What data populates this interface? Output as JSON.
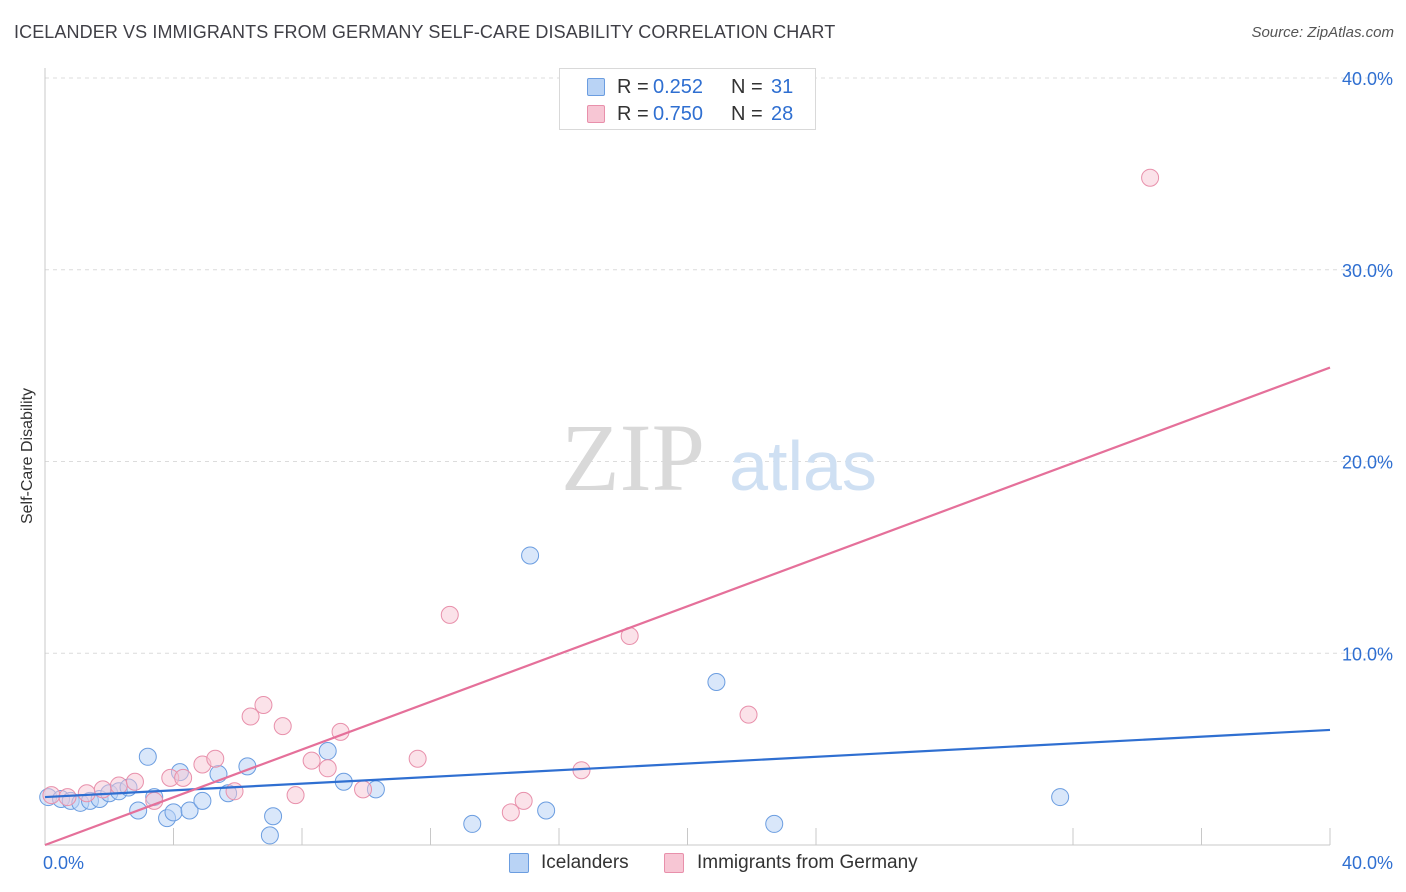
{
  "header": {
    "title": "ICELANDER VS IMMIGRANTS FROM GERMANY SELF-CARE DISABILITY CORRELATION CHART",
    "source": "Source: ZipAtlas.com"
  },
  "watermark": {
    "zip": "ZIP",
    "atlas": "atlas"
  },
  "stats": {
    "rows": [
      {
        "r_label": "R =",
        "r_value": "0.252",
        "n_label": "N =",
        "n_value": "31",
        "color": "#b9d3f5",
        "border": "#6b9de0"
      },
      {
        "r_label": "R =",
        "r_value": "0.750",
        "n_label": "N =",
        "n_value": "28",
        "color": "#f7c6d4",
        "border": "#e890ab"
      }
    ]
  },
  "legend": {
    "items": [
      {
        "label": "Icelanders",
        "color": "#b9d3f5",
        "border": "#6b9de0"
      },
      {
        "label": "Immigrants from Germany",
        "color": "#f7c6d4",
        "border": "#e890ab"
      }
    ]
  },
  "chart_data": {
    "type": "scatter",
    "title": "ICELANDER VS IMMIGRANTS FROM GERMANY SELF-CARE DISABILITY CORRELATION CHART",
    "xlabel": "",
    "ylabel": "Self-Care Disability",
    "xlim": [
      0,
      40
    ],
    "ylim": [
      0,
      40
    ],
    "x_tick_labels": [
      {
        "value": 0,
        "label": "0.0%"
      },
      {
        "value": 40,
        "label": "40.0%"
      }
    ],
    "y_tick_labels": [
      {
        "value": 10,
        "label": "10.0%"
      },
      {
        "value": 20,
        "label": "20.0%"
      },
      {
        "value": 30,
        "label": "30.0%"
      },
      {
        "value": 40,
        "label": "40.0%"
      }
    ],
    "x_minor_ticks": [
      4,
      8,
      12,
      16,
      20,
      24,
      32,
      36,
      40
    ],
    "grid": true,
    "colors": {
      "Icelanders": "#6b9de0",
      "Immigrants from Germany": "#e890ab",
      "blue_line": "#2f6fd1",
      "pink_line": "#e5709a",
      "tick_label": "#2f6fd1"
    },
    "series": [
      {
        "name": "Icelanders",
        "R": 0.252,
        "N": 31,
        "trend": {
          "x": [
            0,
            40
          ],
          "y": [
            2.5,
            6.0
          ]
        },
        "points": [
          [
            0.1,
            2.5
          ],
          [
            0.5,
            2.4
          ],
          [
            0.8,
            2.3
          ],
          [
            1.1,
            2.2
          ],
          [
            1.4,
            2.3
          ],
          [
            1.7,
            2.4
          ],
          [
            2.0,
            2.7
          ],
          [
            2.3,
            2.8
          ],
          [
            2.6,
            3.0
          ],
          [
            2.9,
            1.8
          ],
          [
            3.2,
            4.6
          ],
          [
            3.4,
            2.5
          ],
          [
            3.8,
            1.4
          ],
          [
            4.0,
            1.7
          ],
          [
            4.2,
            3.8
          ],
          [
            4.5,
            1.8
          ],
          [
            4.9,
            2.3
          ],
          [
            5.4,
            3.7
          ],
          [
            5.7,
            2.7
          ],
          [
            6.3,
            4.1
          ],
          [
            7.0,
            0.5
          ],
          [
            7.1,
            1.5
          ],
          [
            8.8,
            4.9
          ],
          [
            9.3,
            3.3
          ],
          [
            10.3,
            2.9
          ],
          [
            13.3,
            1.1
          ],
          [
            15.1,
            15.1
          ],
          [
            15.6,
            1.8
          ],
          [
            20.9,
            8.5
          ],
          [
            22.7,
            1.1
          ],
          [
            31.6,
            2.5
          ]
        ]
      },
      {
        "name": "Immigrants from Germany",
        "R": 0.75,
        "N": 28,
        "trend": {
          "x": [
            0,
            40
          ],
          "y": [
            0,
            24.9
          ]
        },
        "points": [
          [
            0.2,
            2.6
          ],
          [
            0.7,
            2.5
          ],
          [
            1.3,
            2.7
          ],
          [
            1.8,
            2.9
          ],
          [
            2.3,
            3.1
          ],
          [
            2.8,
            3.3
          ],
          [
            3.4,
            2.3
          ],
          [
            3.9,
            3.5
          ],
          [
            4.3,
            3.5
          ],
          [
            4.9,
            4.2
          ],
          [
            5.3,
            4.5
          ],
          [
            5.9,
            2.8
          ],
          [
            6.4,
            6.7
          ],
          [
            6.8,
            7.3
          ],
          [
            7.4,
            6.2
          ],
          [
            7.8,
            2.6
          ],
          [
            8.3,
            4.4
          ],
          [
            8.8,
            4.0
          ],
          [
            9.2,
            5.9
          ],
          [
            9.9,
            2.9
          ],
          [
            11.6,
            4.5
          ],
          [
            12.6,
            12.0
          ],
          [
            14.5,
            1.7
          ],
          [
            14.9,
            2.3
          ],
          [
            16.7,
            3.9
          ],
          [
            18.2,
            10.9
          ],
          [
            21.9,
            6.8
          ],
          [
            34.4,
            34.8
          ]
        ]
      }
    ]
  }
}
